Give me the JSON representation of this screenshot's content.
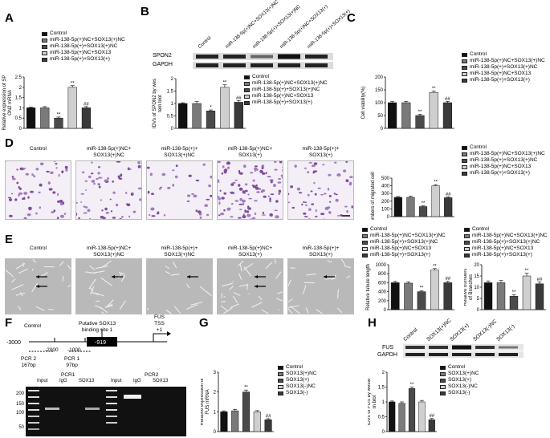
{
  "panels": {
    "A": "A",
    "B": "B",
    "C": "C",
    "D": "D",
    "E": "E",
    "F": "F",
    "G": "G",
    "H": "H"
  },
  "colors": {
    "control": "#111111",
    "nc": "#7a7a7a",
    "kd": "#4a4a4a",
    "oe": "#cfcfcf",
    "both": "#3a3a3a"
  },
  "groups5": [
    "Control",
    "miR-138-5p(+)NC+SOX13(+)NC",
    "miR-138-5p(+)+SOX13(+)NC",
    "miR-138-5p(+)NC+SOX13",
    "miR-138-5p(+)+SOX13(+)"
  ],
  "groups5b": [
    "Control",
    "miR-138-5p(+)NC+SOX13(+)NC",
    "miR-138-5p(+)+SOX13(+)NC",
    "miR-138-5p(+)NC+SOX13",
    "miR-138-5p(+)+SOX13(+)"
  ],
  "groupsC": [
    "Control",
    "miR-138-5p(+)NC+SOX13(+)NC",
    "miR-138-5p(+)+SOX13(+)NC",
    "miR-138-5p(+)NC+SOX13",
    "miR-138-5p(+)+SOX13(+)"
  ],
  "groupsD": [
    "Control",
    "miR-138-5p(+)NC+SOX13(+)NC",
    "miR-138-5p(+)+SOX13(+)NC",
    "miR-138-5p(+)NC+SOX13",
    "miR-138-5p(+)+SOX13(+)"
  ],
  "groupsE1": [
    "Control",
    "miR-138-5p(+)NC+SOX13(+)NC",
    "miR-138-5p(+)+SOX13(+)NC",
    "miR-138-5p(+)NC+SOX13",
    "miR-138-5p(+)+SOX13(+)"
  ],
  "groupsE2": [
    "Control",
    "miR-138-5p(+)NC+SOX13(+)NC",
    "miR-138-5p(+)+SOX13(+)NC",
    "miR-138-5p(+)NC+SOX13",
    "miR-138-5p(+)+SOX13(+)"
  ],
  "groupsGH": [
    "Control",
    "SOX13(+)NC",
    "SOX13(+)",
    "SOX13(-)NC",
    "SOX13(-)"
  ],
  "colorsGH": [
    "#111111",
    "#7a7a7a",
    "#4a4a4a",
    "#cfcfcf",
    "#3a3a3a"
  ],
  "blotB": {
    "band1": "SPON2",
    "band2": "GAPDH",
    "lanes": [
      "Control",
      "miR-138-5p(+)NC+SOX13(+)NC",
      "miR-138-5p(+)+SOX13(+)NC",
      "miR-138-5p(+)NC+SOX13(+)",
      "miR-138-5p(+)+SOX13(+)"
    ]
  },
  "blotH": {
    "band1": "FUS",
    "band2": "GAPDH",
    "lanes": [
      "Control",
      "SOX13(+)NC",
      "SOX13(+)",
      "SOX13(-)NC",
      "SOX13(-)"
    ]
  },
  "micrographD": [
    "Control",
    "miR-138-5p(+)NC+\nSOX13(+)NC",
    "miR-138-5p(+)+\nSOX13(+)NC",
    "miR-138-5p(+)NC+\nSOX13(+)",
    "miR-138-5p(+)+\nSOX13(+)"
  ],
  "micrographE": [
    "Control",
    "miR-138-5p(+)NC+\nSOX13(+)NC",
    "miR-138-5p(+)+\nSOX13(+)NC",
    "miR-138-5p(+)NC+\nSOX13(+)",
    "miR-138-5p(+)+\nSOX13(+)"
  ],
  "promoter": {
    "start": "-3000",
    "m2000": "-2000",
    "m1000": "-1000",
    "site": "-919",
    "siteLabel": "Putative SOX13\nbinding site 1",
    "fus": "FUS\nTSS\n+1",
    "pcr2": "PCR 2\n167bp",
    "pcr1": "PCR 1\n97bp"
  },
  "gel": {
    "group1": "PCR1",
    "group2": "PCR2",
    "lanes": [
      "Input",
      "IgG",
      "SOX13",
      "Input",
      "IgG",
      "SOX13"
    ],
    "ladder": [
      "200",
      "150",
      "100",
      "50"
    ]
  },
  "chart_data": [
    {
      "id": "A",
      "type": "bar",
      "ylabel": "Relative expression of SPON2 mRNA",
      "ylim": [
        0,
        2.5
      ],
      "yticks": [
        0,
        0.5,
        1,
        1.5,
        2,
        2.5
      ],
      "values": [
        1.0,
        1.0,
        0.5,
        2.0,
        1.0
      ],
      "errors": [
        0.04,
        0.06,
        0.05,
        0.08,
        0.06
      ],
      "sig": [
        "",
        "",
        "**",
        "**",
        "##"
      ]
    },
    {
      "id": "B",
      "type": "bar",
      "ylabel": "IDVs of SPON2 by western blot",
      "ylim": [
        0,
        2.0
      ],
      "yticks": [
        0,
        0.5,
        1,
        1.5,
        2
      ],
      "values": [
        1.0,
        1.0,
        0.7,
        1.65,
        1.05
      ],
      "errors": [
        0.03,
        0.08,
        0.04,
        0.1,
        0.07
      ],
      "sig": [
        "",
        "",
        "*",
        "**",
        "##"
      ]
    },
    {
      "id": "C",
      "type": "bar",
      "ylabel": "Cell viability(%)",
      "ylim": [
        0,
        200
      ],
      "yticks": [
        0,
        50,
        100,
        150,
        200
      ],
      "values": [
        100,
        100,
        50,
        140,
        100
      ],
      "errors": [
        4,
        5,
        5,
        6,
        5
      ],
      "sig": [
        "",
        "",
        "**",
        "**",
        "##"
      ]
    },
    {
      "id": "D",
      "type": "bar",
      "ylabel": "Numbers of migrated cells",
      "ylim": [
        0,
        500
      ],
      "yticks": [
        0,
        100,
        200,
        300,
        400,
        500
      ],
      "values": [
        250,
        250,
        130,
        400,
        245
      ],
      "errors": [
        12,
        15,
        10,
        15,
        12
      ],
      "sig": [
        "",
        "",
        "**",
        "**",
        "##"
      ]
    },
    {
      "id": "E1",
      "type": "bar",
      "ylabel": "Relative tubule length",
      "ylim": [
        0,
        1000
      ],
      "yticks": [
        0,
        200,
        400,
        600,
        800,
        1000
      ],
      "values": [
        600,
        590,
        400,
        880,
        600
      ],
      "errors": [
        30,
        30,
        25,
        35,
        30
      ],
      "sig": [
        "",
        "",
        "**",
        "**",
        "##"
      ]
    },
    {
      "id": "E2",
      "type": "bar",
      "ylabel": "Relative numbers of Branches",
      "ylim": [
        0,
        20
      ],
      "yticks": [
        0,
        5,
        10,
        15,
        20
      ],
      "values": [
        12,
        12,
        6,
        15,
        11.5
      ],
      "errors": [
        0.8,
        1,
        0.6,
        1.2,
        0.9
      ],
      "sig": [
        "",
        "",
        "**",
        "**",
        "##"
      ]
    },
    {
      "id": "G",
      "type": "bar",
      "ylabel": "Relative expression of FUS mRNA",
      "ylim": [
        0,
        3
      ],
      "yticks": [
        0,
        1,
        2,
        3
      ],
      "values": [
        1.0,
        1.05,
        2.0,
        1.0,
        0.6
      ],
      "errors": [
        0.05,
        0.07,
        0.1,
        0.06,
        0.05
      ],
      "sig": [
        "",
        "",
        "**",
        "",
        "##"
      ]
    },
    {
      "id": "H",
      "type": "bar",
      "ylabel": "IDVs of FUS by western blot",
      "ylim": [
        0,
        2.0
      ],
      "yticks": [
        0,
        0.5,
        1,
        1.5,
        2
      ],
      "values": [
        1.0,
        0.95,
        1.45,
        1.0,
        0.4
      ],
      "errors": [
        0.03,
        0.05,
        0.05,
        0.05,
        0.04
      ],
      "sig": [
        "",
        "",
        "**",
        "",
        "##"
      ]
    }
  ]
}
